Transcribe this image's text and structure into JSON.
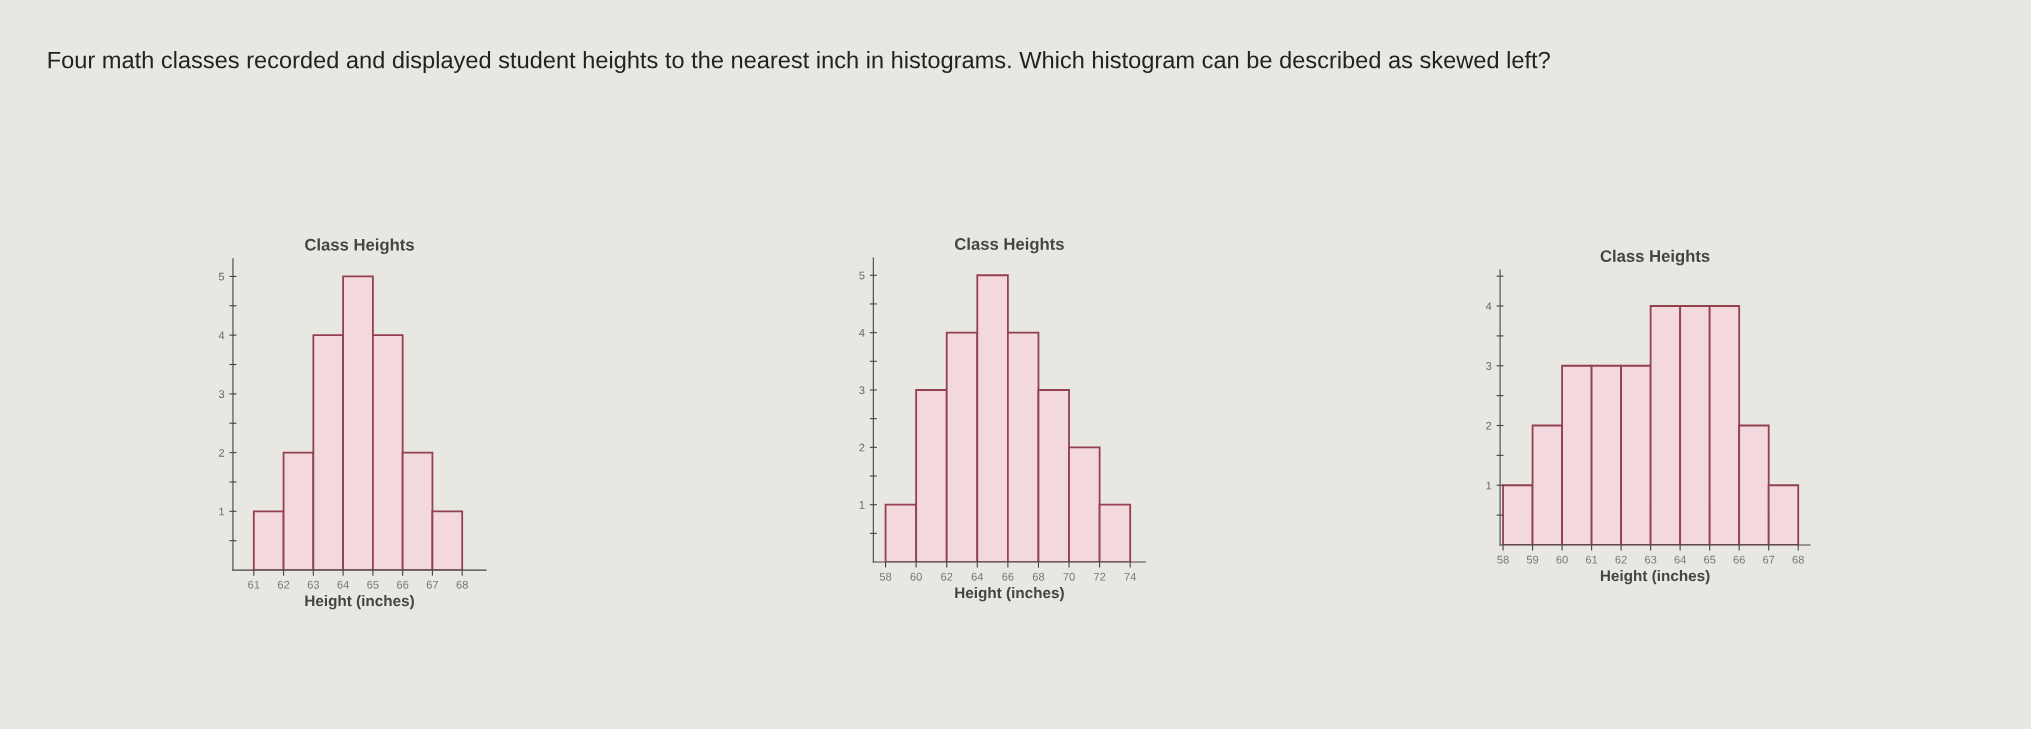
{
  "chart_data": [
    {
      "type": "other",
      "title": "Four math classes recorded and displayed student heights to the nearest inch in histograms. Which histogram can be described as skewed left?"
    },
    {
      "type": "histogram",
      "title": "Class Heights",
      "xlabel": "Height (inches)",
      "color": "#f3d9de",
      "bins": [
        61,
        62,
        63,
        64,
        65,
        66,
        67,
        68
      ],
      "values": [
        1,
        2,
        4,
        5,
        4,
        2,
        1
      ],
      "xlim": [
        60.3,
        68.8
      ],
      "xticks": [
        61,
        62,
        63,
        64,
        65,
        66,
        67,
        68
      ],
      "ylim": [
        0,
        5.3
      ],
      "yticks": [
        {
          "value": 0.5,
          "label": null
        },
        1,
        {
          "value": 1.5,
          "label": null
        },
        2,
        {
          "value": 2.5,
          "label": null
        },
        3,
        {
          "value": 3.5,
          "label": null
        },
        4,
        {
          "value": 4.5,
          "label": null
        },
        5
      ],
      "grid": false
    },
    {
      "type": "histogram",
      "title": "Class Heights",
      "xlabel": "Height (inches)",
      "color": "#f3d9de",
      "bins": [
        58,
        60,
        62,
        64,
        66,
        68,
        70,
        72,
        74
      ],
      "values": [
        1,
        3,
        4,
        5,
        4,
        3,
        2,
        1
      ],
      "xlim": [
        57.2,
        75
      ],
      "xticks": [
        58,
        60,
        62,
        64,
        66,
        68,
        70,
        72,
        74
      ],
      "ylim": [
        0,
        5.3
      ],
      "yticks": [
        {
          "value": 0.5,
          "label": null
        },
        1,
        {
          "value": 1.5,
          "label": null
        },
        2,
        {
          "value": 2.5,
          "label": null
        },
        3,
        {
          "value": 3.5,
          "label": null
        },
        4,
        {
          "value": 4.5,
          "label": null
        },
        5
      ],
      "grid": false
    },
    {
      "type": "histogram",
      "title": "Class Heights",
      "xlabel": "Height (inches)",
      "color": "#f3d9de",
      "bins": [
        58,
        59,
        60,
        61,
        62,
        63,
        64,
        65,
        66,
        67,
        68
      ],
      "values": [
        1,
        2,
        3,
        3,
        3,
        4,
        4,
        4,
        2,
        1
      ],
      "xlim": [
        57.9,
        68.4
      ],
      "xticks": [
        58,
        59,
        60,
        61,
        62,
        63,
        64,
        65,
        66,
        67,
        68
      ],
      "ylim": [
        0,
        4.6
      ],
      "yticks": [
        {
          "value": 0.5,
          "label": null
        },
        1,
        {
          "value": 1.5,
          "label": null
        },
        2,
        {
          "value": 2.5,
          "label": null
        },
        3,
        {
          "value": 3.5,
          "label": null
        },
        4,
        {
          "value": 4.5,
          "label": null
        }
      ],
      "grid": false
    }
  ]
}
